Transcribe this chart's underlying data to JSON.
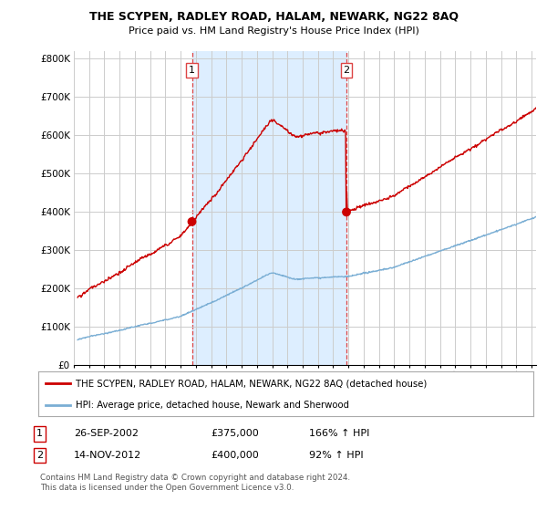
{
  "title": "THE SCYPEN, RADLEY ROAD, HALAM, NEWARK, NG22 8AQ",
  "subtitle": "Price paid vs. HM Land Registry's House Price Index (HPI)",
  "ylabel_ticks": [
    "£0",
    "£100K",
    "£200K",
    "£300K",
    "£400K",
    "£500K",
    "£600K",
    "£700K",
    "£800K"
  ],
  "ytick_values": [
    0,
    100000,
    200000,
    300000,
    400000,
    500000,
    600000,
    700000,
    800000
  ],
  "ylim": [
    0,
    820000
  ],
  "xlim_start": 1995.25,
  "xlim_end": 2025.3,
  "transaction1": {
    "date": 2002.74,
    "price": 375000,
    "label": "1"
  },
  "transaction2": {
    "date": 2012.87,
    "price": 400000,
    "label": "2"
  },
  "legend_red": "THE SCYPEN, RADLEY ROAD, HALAM, NEWARK, NG22 8AQ (detached house)",
  "legend_blue": "HPI: Average price, detached house, Newark and Sherwood",
  "table_row1": [
    "1",
    "26-SEP-2002",
    "£375,000",
    "166% ↑ HPI"
  ],
  "table_row2": [
    "2",
    "14-NOV-2012",
    "£400,000",
    "92% ↑ HPI"
  ],
  "footer": "Contains HM Land Registry data © Crown copyright and database right 2024.\nThis data is licensed under the Open Government Licence v3.0.",
  "red_color": "#cc0000",
  "blue_color": "#7aaed4",
  "shade_color": "#ddeeff",
  "dashed_vline_color": "#dd4444",
  "background_color": "#ffffff",
  "grid_color": "#cccccc"
}
